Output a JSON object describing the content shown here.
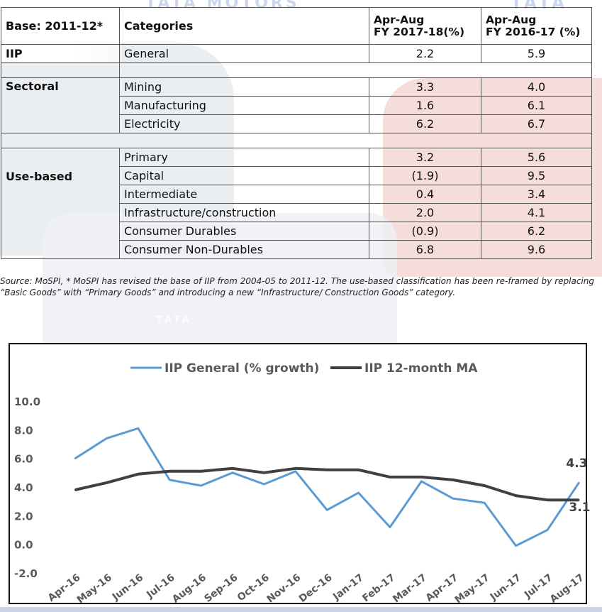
{
  "watermark": {
    "logo_text_1": "TATA MOTORS",
    "logo_text_2": "TATA",
    "logo_text_3": "TATA"
  },
  "table": {
    "headers": {
      "base": "Base: 2011-12*",
      "categories": "Categories",
      "col1_line1": "Apr-Aug",
      "col1_line2": "FY 2017-18(%)",
      "col2_line1": "Apr-Aug",
      "col2_line2": "FY 2016-17 (%)"
    },
    "groups": {
      "iip": "IIP",
      "sectoral": "Sectoral",
      "use_based": "Use-based"
    },
    "rows": {
      "general": {
        "category": "General",
        "fy18": "2.2",
        "fy17": "5.9"
      },
      "mining": {
        "category": "Mining",
        "fy18": "3.3",
        "fy17": "4.0"
      },
      "manufacturing": {
        "category": "Manufacturing",
        "fy18": "1.6",
        "fy17": "6.1"
      },
      "electricity": {
        "category": "Electricity",
        "fy18": "6.2",
        "fy17": "6.7"
      },
      "primary": {
        "category": "Primary",
        "fy18": "3.2",
        "fy17": "5.6"
      },
      "capital": {
        "category": "Capital",
        "fy18": "(1.9)",
        "fy17": "9.5"
      },
      "intermediate": {
        "category": "Intermediate",
        "fy18": "0.4",
        "fy17": "3.4"
      },
      "infrastructure": {
        "category": "Infrastructure/construction",
        "fy18": "2.0",
        "fy17": "4.1"
      },
      "durables": {
        "category": "Consumer Durables",
        "fy18": "(0.9)",
        "fy17": "6.2"
      },
      "nondurables": {
        "category": "Consumer Non-Durables",
        "fy18": "6.8",
        "fy17": "9.6"
      }
    }
  },
  "source_note": "Source: MoSPI, * MoSPI has revised the base of IIP from 2004-05 to 2011-12. The use-based classification has been re-framed by replacing “Basic Goods” with “Primary Goods” and introducing a new “Infrastructure/ Construction Goods” category.",
  "chart_data": {
    "type": "line",
    "title": "",
    "xlabel": "",
    "ylabel": "",
    "legend_position": "top-center",
    "ylim": [
      -2.0,
      10.0
    ],
    "yticks": [
      -2.0,
      0.0,
      2.0,
      4.0,
      6.0,
      8.0,
      10.0
    ],
    "ytick_labels": [
      "-2.0",
      "0.0",
      "2.0",
      "4.0",
      "6.0",
      "8.0",
      "10.0"
    ],
    "categories": [
      "Apr-16",
      "May-16",
      "Jun-16",
      "Jul-16",
      "Aug-16",
      "Sep-16",
      "Oct-16",
      "Nov-16",
      "Dec-16",
      "Jan-17",
      "Feb-17",
      "Mar-17",
      "Apr-17",
      "May-17",
      "Jun-17",
      "Jul-17",
      "Aug-17"
    ],
    "series": [
      {
        "name": "IIP General (% growth)",
        "color": "#5b9bd5",
        "values": [
          6.0,
          7.4,
          8.1,
          4.5,
          4.1,
          5.0,
          4.2,
          5.1,
          2.4,
          3.6,
          1.2,
          4.4,
          3.2,
          2.9,
          -0.1,
          1.0,
          4.3
        ]
      },
      {
        "name": "IIP 12-month MA",
        "color": "#404040",
        "values": [
          3.8,
          4.3,
          4.9,
          5.1,
          5.1,
          5.3,
          5.0,
          5.3,
          5.2,
          5.2,
          4.7,
          4.7,
          4.5,
          4.1,
          3.4,
          3.1,
          3.1
        ]
      }
    ],
    "annotations": [
      {
        "text": "4.3",
        "series": 0,
        "index": 16,
        "color": "#404040"
      },
      {
        "text": "3.1",
        "series": 1,
        "index": 16,
        "color": "#404040"
      }
    ]
  }
}
